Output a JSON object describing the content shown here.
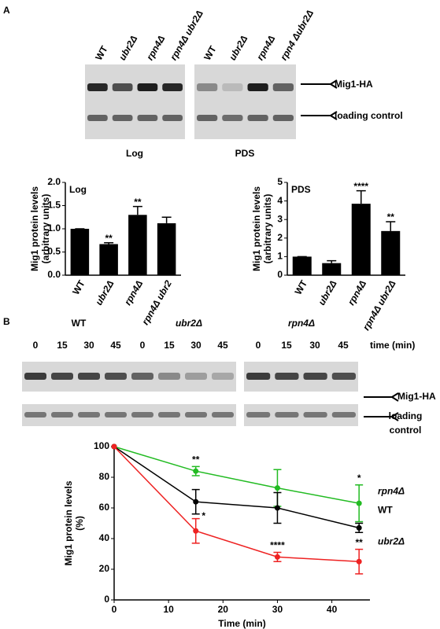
{
  "panel_labels": [
    "A",
    "B"
  ],
  "blots_a": {
    "lanes": [
      "WT",
      "ubr2Δ",
      "rpn4Δ",
      "rpn4Δ ubr2Δ",
      "WT",
      "ubr2Δ",
      "rpn4Δ",
      "rpn4 Δubr2Δ"
    ],
    "bands": [
      "Mig1-HA",
      "loading control"
    ],
    "conditions": [
      "Log",
      "PDS"
    ]
  },
  "blots_b": {
    "strains": [
      "WT",
      "ubr2Δ",
      "rpn4Δ"
    ],
    "times": [
      "0",
      "15",
      "30",
      "45",
      "0",
      "15",
      "30",
      "45",
      "0",
      "15",
      "30",
      "45"
    ],
    "time_label": "time (min)",
    "bands": [
      "Mig1-HA",
      "loading",
      "control"
    ]
  },
  "chart_data": [
    {
      "type": "bar",
      "title": "Log",
      "y_label": [
        "Mig1 protein levels",
        "(arbitrary units)"
      ],
      "categories": [
        "WT",
        "ubr2Δ",
        "rpn4Δ",
        "rpn4Δ ubr2"
      ],
      "values": [
        1.0,
        0.67,
        1.3,
        1.12
      ],
      "errors": [
        0,
        0.03,
        0.18,
        0.13
      ],
      "significance": [
        null,
        "**",
        "**",
        null
      ],
      "color": "#000000",
      "ylim": [
        0,
        2
      ],
      "yticks": [
        {
          "value": 0,
          "label": "0.0"
        },
        0.5,
        {
          "value": 1,
          "label": "1.0"
        },
        1.5,
        {
          "value": 2,
          "label": "2.0"
        }
      ]
    },
    {
      "type": "bar",
      "title": "PDS",
      "y_label": [
        "Mig1 protein levels",
        "(arbitrary units)"
      ],
      "categories": [
        "WT",
        "ubr2Δ",
        "rpn4Δ",
        "rpn4Δ ubr2Δ"
      ],
      "values": [
        1.0,
        0.65,
        3.85,
        2.38
      ],
      "errors": [
        0,
        0.13,
        0.7,
        0.5
      ],
      "significance": [
        null,
        null,
        "****",
        "**"
      ],
      "color": "#000000",
      "ylim": [
        0,
        5
      ],
      "yticks": [
        0,
        1,
        2,
        3,
        4,
        5
      ]
    },
    {
      "type": "line",
      "x_label": "Time (min)",
      "y_label": [
        "Mig1 protein levels",
        "(%)"
      ],
      "x": [
        0,
        15,
        30,
        45
      ],
      "xlim": [
        0,
        47
      ],
      "xticks": [
        0,
        10,
        20,
        30,
        40
      ],
      "ylim": [
        0,
        100
      ],
      "yticks": [
        0,
        20,
        40,
        60,
        80,
        100
      ],
      "series": [
        {
          "name": "rpn4Δ",
          "color": "#22bb22",
          "values": [
            100,
            84,
            73,
            63
          ],
          "errors": [
            0,
            3,
            12,
            12
          ],
          "significance": [
            null,
            "**",
            null,
            "*"
          ]
        },
        {
          "name": "WT",
          "color": "#000000",
          "values": [
            100,
            64,
            60,
            47
          ],
          "errors": [
            0,
            8,
            10,
            3
          ],
          "significance": [
            null,
            null,
            null,
            null
          ]
        },
        {
          "name": "ubr2Δ",
          "color": "#ee2222",
          "values": [
            100,
            45,
            28,
            25
          ],
          "errors": [
            0,
            8,
            3,
            8
          ],
          "significance": [
            null,
            "*",
            "****",
            "**"
          ]
        }
      ]
    }
  ]
}
